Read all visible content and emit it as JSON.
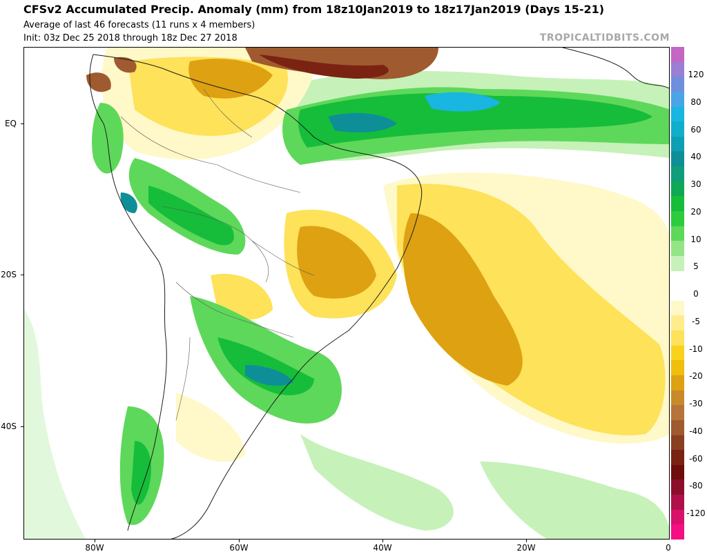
{
  "header": {
    "title": "CFSv2 Accumulated Precip. Anomaly (mm) from 18z10Jan2019 to 18z17Jan2019 (Days 15-21)",
    "subtitle_1": "Average of last 46 forecasts (11 runs x 4 members)",
    "subtitle_2": "Init: 03z Dec 25 2018 through 18z Dec 27 2018",
    "brand": "TROPICALTIDBITS.COM"
  },
  "axes": {
    "y_labels": [
      "EQ",
      "20S",
      "40S"
    ],
    "x_labels": [
      "80W",
      "60W",
      "40W",
      "20W",
      "0"
    ]
  },
  "colorbar": {
    "labels": [
      "120",
      "80",
      "60",
      "40",
      "30",
      "20",
      "10",
      "5",
      "0",
      "-5",
      "-10",
      "-20",
      "-30",
      "-40",
      "-60",
      "-80",
      "-120"
    ],
    "colors": [
      "#c466c4",
      "#9a7fd4",
      "#6f8fdd",
      "#4aa4e8",
      "#18b6e0",
      "#11aecb",
      "#0f9fb3",
      "#0e8f98",
      "#119c7c",
      "#10a855",
      "#16bd3a",
      "#2ccc3d",
      "#5ed85a",
      "#93e585",
      "#c6f1b9",
      "#ffffff",
      "#ffffff",
      "#fff8c8",
      "#ffed8c",
      "#fde25a",
      "#f8d21c",
      "#efbf0b",
      "#dea112",
      "#c98a2a",
      "#b6743a",
      "#9f5a2f",
      "#8a3f22",
      "#7a2313",
      "#6e0d0d",
      "#8c0f2a",
      "#b0104a",
      "#d8126a",
      "#f40f82"
    ]
  },
  "legend_colors": {
    "dry_strong": "#7a2313",
    "dry": "#dea112",
    "dry_light": "#fde25a",
    "wet_light": "#93e585",
    "wet": "#16bd3a",
    "wet_strong": "#18b6e0"
  }
}
